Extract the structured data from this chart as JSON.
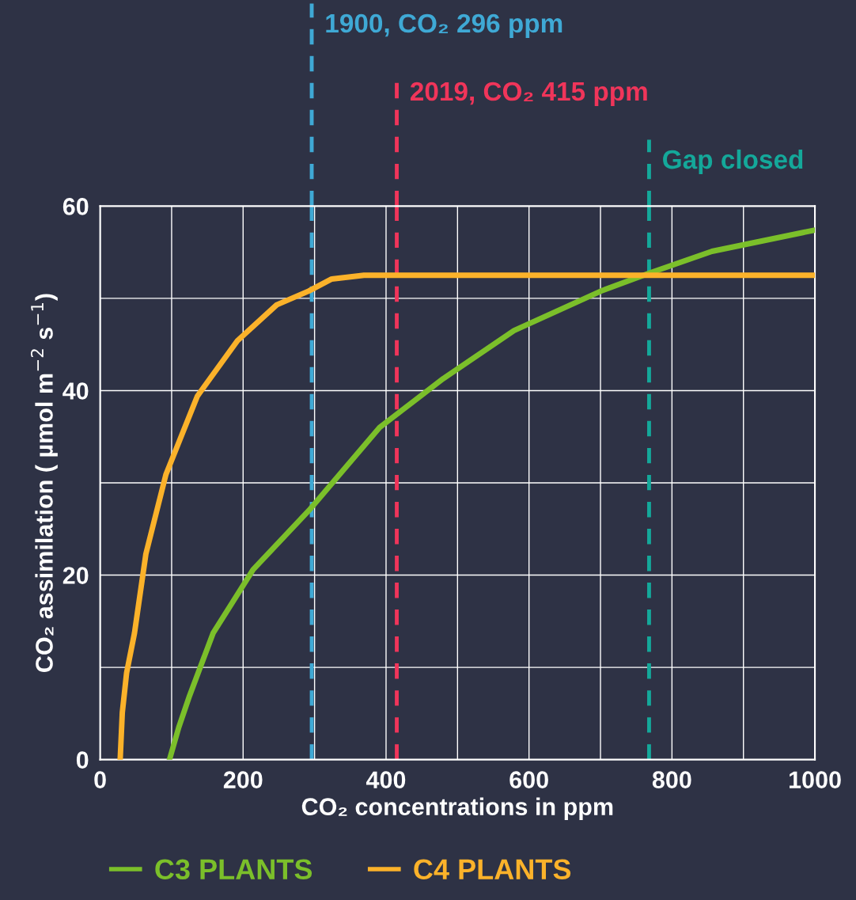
{
  "chart_data": {
    "type": "line",
    "xlabel": "CO₂ concentrations in ppm",
    "ylabel": "CO₂ assimilation ( µmol m$^{−2}$ s$^{−1}$)",
    "xlim": [
      0,
      1000
    ],
    "ylim": [
      0,
      60
    ],
    "xticks": [
      0,
      {
        "value": 100,
        "label": null
      },
      200,
      {
        "value": 300,
        "label": null
      },
      400,
      {
        "value": 500,
        "label": null
      },
      600,
      {
        "value": 700,
        "label": null
      },
      800,
      {
        "value": 900,
        "label": null
      },
      1000
    ],
    "yticks": [
      0,
      {
        "value": 10,
        "label": null
      },
      20,
      {
        "value": 30,
        "label": null
      },
      40,
      {
        "value": 50,
        "label": null
      },
      60
    ],
    "grid": true,
    "legend": "bottom left",
    "marker": "none",
    "line_style": "solid",
    "series": [
      {
        "name": "C3 PLANTS",
        "color": "#7bbf2a",
        "x": [
          97,
          110,
          125,
          158,
          214,
          292,
          391,
          480,
          579,
          701,
          767,
          856,
          1000
        ],
        "values": [
          0,
          3.5,
          6.9,
          13.7,
          20.6,
          27,
          36,
          41.3,
          46.5,
          50.8,
          52.7,
          55.1,
          57.4
        ]
      },
      {
        "name": "C4 PLANTS",
        "color": "#fbb22a",
        "x": [
          28,
          31,
          37,
          48,
          64,
          92,
          136,
          192,
          247,
          292,
          324,
          369,
          1000
        ],
        "values": [
          0,
          5.1,
          9.4,
          13.7,
          22.3,
          30.9,
          39.4,
          45.4,
          49.3,
          50.8,
          52.1,
          52.5,
          52.5
        ]
      }
    ],
    "ref_lines": [
      {
        "axis": "x",
        "value": 296,
        "label": "1900, CO₂ 296 ppm",
        "color": "#3fa9d5",
        "line_style": "dashed"
      },
      {
        "axis": "x",
        "value": 415,
        "label": "2019, CO₂ 415 ppm",
        "color": "#f0355a",
        "line_style": "dashed"
      },
      {
        "axis": "x",
        "value": 768,
        "label": "Gap closed",
        "color": "#14a89a",
        "line_style": "dashed"
      }
    ]
  }
}
